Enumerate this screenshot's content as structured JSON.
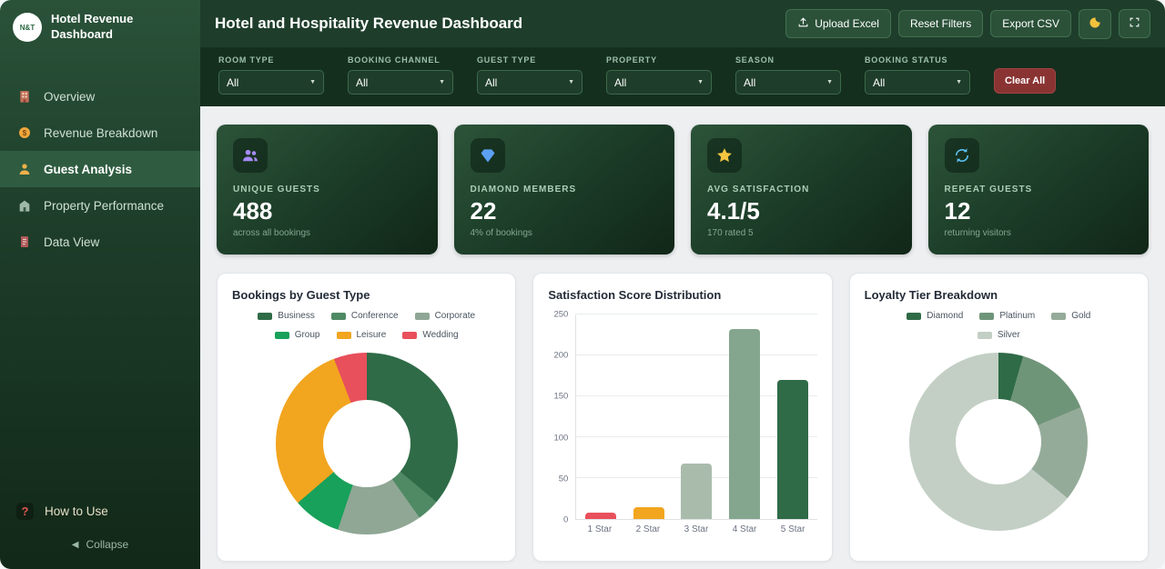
{
  "theme": {
    "header_green": "#1e3e2b",
    "filter_green": "#152f1f",
    "sidebar_green_top": "#2a5239",
    "sidebar_green_bottom": "#122818",
    "active_item_green": "#2f5c40",
    "clear_all_red": "#8a3333",
    "page_bg": "#edeff1"
  },
  "sidebar": {
    "logo_text": "N&T",
    "title": "Hotel Revenue Dashboard",
    "items": [
      {
        "label": "Overview",
        "icon": "building-icon",
        "active": false
      },
      {
        "label": "Revenue Breakdown",
        "icon": "coin-icon",
        "active": false
      },
      {
        "label": "Guest Analysis",
        "icon": "person-icon",
        "active": true
      },
      {
        "label": "Property Performance",
        "icon": "hotel-icon",
        "active": false
      },
      {
        "label": "Data View",
        "icon": "document-icon",
        "active": false
      }
    ],
    "footer": {
      "help_label": "How to Use",
      "help_icon_glyph": "?",
      "collapse_label": "Collapse",
      "collapse_icon_glyph": "◀"
    }
  },
  "header": {
    "title": "Hotel and Hospitality Revenue Dashboard",
    "buttons": {
      "upload": "Upload Excel",
      "reset": "Reset Filters",
      "export": "Export CSV"
    }
  },
  "filters": {
    "fields": [
      {
        "label": "ROOM TYPE",
        "value": "All"
      },
      {
        "label": "BOOKING CHANNEL",
        "value": "All"
      },
      {
        "label": "GUEST TYPE",
        "value": "All"
      },
      {
        "label": "PROPERTY",
        "value": "All"
      },
      {
        "label": "SEASON",
        "value": "All"
      },
      {
        "label": "BOOKING STATUS",
        "value": "All"
      }
    ],
    "caret_glyph": "▼",
    "clear_all": "Clear All"
  },
  "kpis": [
    {
      "label": "UNIQUE GUESTS",
      "value": "488",
      "sub": "across all bookings",
      "icon": "users-icon",
      "icon_color": "#a78bfa"
    },
    {
      "label": "DIAMOND MEMBERS",
      "value": "22",
      "sub": "4% of bookings",
      "icon": "diamond-icon",
      "icon_color": "#5ba0f2"
    },
    {
      "label": "AVG SATISFACTION",
      "value": "4.1/5",
      "sub": "170 rated 5",
      "icon": "star-icon",
      "icon_color": "#f5c542"
    },
    {
      "label": "REPEAT GUESTS",
      "value": "12",
      "sub": "returning visitors",
      "icon": "repeat-icon",
      "icon_color": "#5bc0f2"
    }
  ],
  "chart_data": [
    {
      "type": "donut",
      "title": "Bookings by Guest Type",
      "labels": [
        "Business",
        "Conference",
        "Corporate",
        "Group",
        "Leisure",
        "Wedding"
      ],
      "values": [
        178,
        20,
        74,
        42,
        150,
        29
      ],
      "colors": [
        "#2f6b47",
        "#4f8a65",
        "#8fa794",
        "#18a15a",
        "#f2a51f",
        "#e8505b"
      ],
      "legend_position": "top"
    },
    {
      "type": "bar",
      "title": "Satisfaction Score Distribution",
      "categories": [
        "1 Star",
        "2 Star",
        "3 Star",
        "4 Star",
        "5 Star"
      ],
      "values": [
        8,
        15,
        68,
        232,
        170
      ],
      "colors": [
        "#e8505b",
        "#f2a51f",
        "#a9bcac",
        "#85a68e",
        "#2f6b47"
      ],
      "xlabel": "",
      "ylabel": "",
      "ylim": [
        0,
        250
      ],
      "yticks": [
        0,
        50,
        100,
        150,
        200,
        250
      ],
      "grid": true
    },
    {
      "type": "donut",
      "title": "Loyalty Tier Breakdown",
      "labels": [
        "Diamond",
        "Platinum",
        "Gold",
        "Silver"
      ],
      "values": [
        22,
        70,
        85,
        316
      ],
      "colors": [
        "#2f6b47",
        "#6f9579",
        "#95ab99",
        "#c3cfc4"
      ],
      "legend_position": "top"
    }
  ]
}
